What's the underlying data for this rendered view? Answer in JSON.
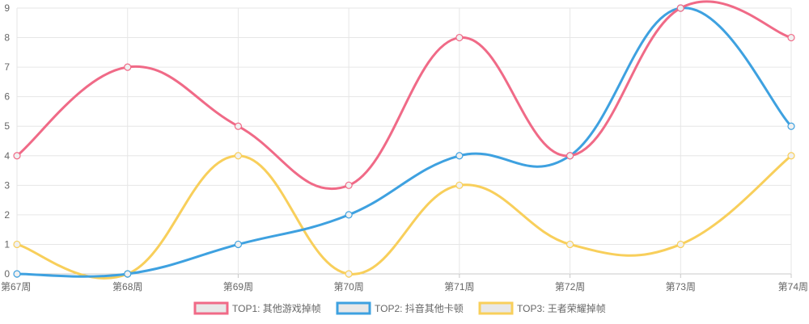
{
  "chart_data": {
    "type": "line",
    "categories": [
      "第67周",
      "第68周",
      "第69周",
      "第70周",
      "第71周",
      "第72周",
      "第73周",
      "第74周"
    ],
    "y_ticks": [
      "0",
      "1",
      "2",
      "3",
      "4",
      "5",
      "6",
      "7",
      "8",
      "9"
    ],
    "ylim": [
      0,
      9
    ],
    "grid": true,
    "legend_position": "bottom",
    "series": [
      {
        "name": "TOP1: 其他游戏掉帧",
        "color": "#f06a87",
        "values": [
          4,
          7,
          5,
          3,
          8,
          4,
          9,
          8
        ]
      },
      {
        "name": "TOP2: 抖音其他卡顿",
        "color": "#3ea1e0",
        "values": [
          0,
          0,
          1,
          2,
          4,
          4,
          9,
          5
        ]
      },
      {
        "name": "TOP3: 王者荣耀掉帧",
        "color": "#f8cf5b",
        "values": [
          1,
          0,
          4,
          0,
          3,
          1,
          1,
          4
        ]
      }
    ]
  }
}
